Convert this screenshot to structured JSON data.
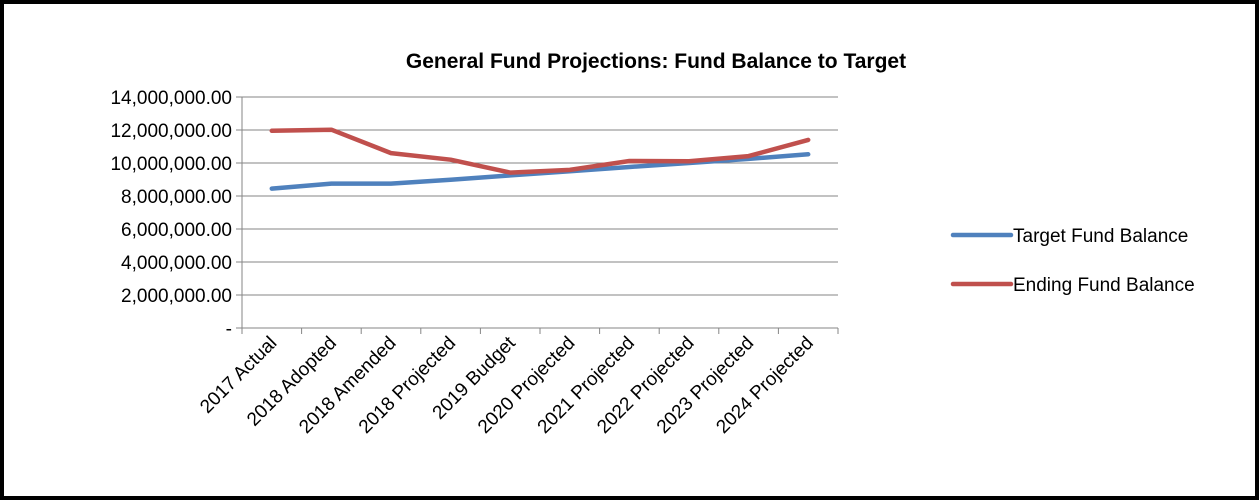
{
  "chart_data": {
    "type": "line",
    "title": "General Fund Projections: Fund Balance to Target",
    "xlabel": "",
    "ylabel": "",
    "categories": [
      "2017 Actual",
      "2018 Adopted",
      "2018 Amended",
      "2018 Projected",
      "2019 Budget",
      "2020 Projected",
      "2021 Projected",
      "2022 Projected",
      "2023 Projected",
      "2024 Projected"
    ],
    "ylim": [
      0,
      14000000
    ],
    "yticks": [
      0,
      2000000,
      4000000,
      6000000,
      8000000,
      10000000,
      12000000,
      14000000
    ],
    "ytick_labels": [
      "-",
      "2,000,000.00",
      "4,000,000.00",
      "6,000,000.00",
      "8,000,000.00",
      "10,000,000.00",
      "12,000,000.00",
      "14,000,000.00"
    ],
    "grid": true,
    "legend_position": "right",
    "series": [
      {
        "name": "Target Fund Balance",
        "color": "#4f81bd",
        "values": [
          8450000,
          8750000,
          8750000,
          8980000,
          9250000,
          9500000,
          9760000,
          10000000,
          10250000,
          10530000
        ]
      },
      {
        "name": "Ending Fund Balance",
        "color": "#c0504d",
        "values": [
          11950000,
          12020000,
          10600000,
          10200000,
          9420000,
          9580000,
          10120000,
          10100000,
          10420000,
          11400000
        ]
      }
    ]
  }
}
